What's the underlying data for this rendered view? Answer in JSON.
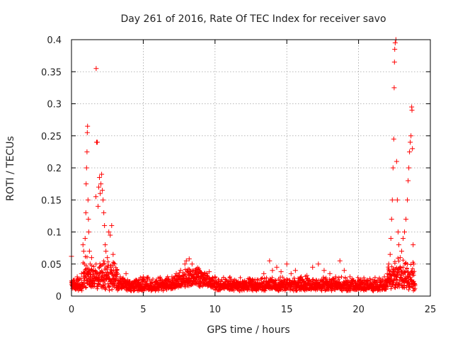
{
  "chart_data": {
    "type": "scatter",
    "title": "Day 261 of 2016, Rate Of TEC Index for receiver savo",
    "xlabel": "GPS time / hours",
    "ylabel": "ROTI / TECUs",
    "xlim": [
      0,
      25
    ],
    "ylim": [
      0,
      0.4
    ],
    "xticks": [
      0,
      5,
      10,
      15,
      20,
      25
    ],
    "xtick_labels": [
      "0",
      "5",
      "10",
      "15",
      "20",
      "25"
    ],
    "yticks": [
      0,
      0.05,
      0.1,
      0.15,
      0.2,
      0.25,
      0.3,
      0.35,
      0.4
    ],
    "ytick_labels": [
      "0",
      "0.05",
      "0.1",
      "0.15",
      "0.2",
      "0.25",
      "0.3",
      "0.35",
      "0.4"
    ],
    "grid": true,
    "marker": "+",
    "color": "#ff0000",
    "series": [
      {
        "name": "ROTI",
        "points": [
          [
            0.0,
            0.062
          ],
          [
            0.1,
            0.018
          ],
          [
            0.2,
            0.025
          ],
          [
            0.3,
            0.012
          ],
          [
            0.4,
            0.03
          ],
          [
            0.5,
            0.02
          ],
          [
            0.6,
            0.015
          ],
          [
            0.7,
            0.035
          ],
          [
            0.8,
            0.08
          ],
          [
            0.85,
            0.07
          ],
          [
            0.9,
            0.05
          ],
          [
            0.95,
            0.09
          ],
          [
            1.0,
            0.13
          ],
          [
            1.02,
            0.175
          ],
          [
            1.05,
            0.2
          ],
          [
            1.08,
            0.225
          ],
          [
            1.1,
            0.255
          ],
          [
            1.12,
            0.265
          ],
          [
            1.15,
            0.15
          ],
          [
            1.18,
            0.12
          ],
          [
            1.2,
            0.1
          ],
          [
            1.25,
            0.07
          ],
          [
            1.3,
            0.05
          ],
          [
            1.35,
            0.04
          ],
          [
            1.4,
            0.06
          ],
          [
            1.45,
            0.03
          ],
          [
            1.5,
            0.025
          ],
          [
            1.6,
            0.02
          ],
          [
            1.7,
            0.155
          ],
          [
            1.72,
            0.355
          ],
          [
            1.75,
            0.24
          ],
          [
            1.8,
            0.24
          ],
          [
            1.85,
            0.14
          ],
          [
            1.9,
            0.17
          ],
          [
            1.95,
            0.185
          ],
          [
            2.0,
            0.16
          ],
          [
            2.05,
            0.175
          ],
          [
            2.1,
            0.19
          ],
          [
            2.15,
            0.165
          ],
          [
            2.2,
            0.15
          ],
          [
            2.25,
            0.13
          ],
          [
            2.3,
            0.11
          ],
          [
            2.35,
            0.08
          ],
          [
            2.4,
            0.07
          ],
          [
            2.5,
            0.06
          ],
          [
            2.6,
            0.1
          ],
          [
            2.7,
            0.095
          ],
          [
            2.8,
            0.11
          ],
          [
            2.9,
            0.065
          ],
          [
            3.0,
            0.05
          ],
          [
            3.1,
            0.04
          ],
          [
            3.2,
            0.035
          ],
          [
            3.4,
            0.03
          ],
          [
            3.6,
            0.028
          ],
          [
            3.8,
            0.035
          ],
          [
            4.0,
            0.02
          ],
          [
            4.2,
            0.018
          ],
          [
            4.5,
            0.022
          ],
          [
            4.8,
            0.015
          ],
          [
            5.0,
            0.03
          ],
          [
            5.2,
            0.015
          ],
          [
            5.5,
            0.02
          ],
          [
            5.8,
            0.012
          ],
          [
            6.0,
            0.018
          ],
          [
            6.3,
            0.02
          ],
          [
            6.6,
            0.025
          ],
          [
            7.0,
            0.03
          ],
          [
            7.3,
            0.035
          ],
          [
            7.6,
            0.04
          ],
          [
            7.9,
            0.05
          ],
          [
            8.0,
            0.055
          ],
          [
            8.2,
            0.058
          ],
          [
            8.4,
            0.05
          ],
          [
            8.6,
            0.04
          ],
          [
            8.8,
            0.035
          ],
          [
            9.0,
            0.03
          ],
          [
            9.3,
            0.035
          ],
          [
            9.6,
            0.038
          ],
          [
            10.0,
            0.03
          ],
          [
            10.3,
            0.02
          ],
          [
            10.6,
            0.018
          ],
          [
            11.0,
            0.015
          ],
          [
            11.5,
            0.02
          ],
          [
            12.0,
            0.015
          ],
          [
            12.5,
            0.022
          ],
          [
            13.0,
            0.025
          ],
          [
            13.4,
            0.035
          ],
          [
            13.8,
            0.055
          ],
          [
            14.0,
            0.04
          ],
          [
            14.3,
            0.045
          ],
          [
            14.6,
            0.038
          ],
          [
            15.0,
            0.05
          ],
          [
            15.3,
            0.035
          ],
          [
            15.6,
            0.04
          ],
          [
            16.0,
            0.03
          ],
          [
            16.4,
            0.032
          ],
          [
            16.8,
            0.045
          ],
          [
            17.2,
            0.05
          ],
          [
            17.6,
            0.04
          ],
          [
            18.0,
            0.035
          ],
          [
            18.4,
            0.03
          ],
          [
            18.7,
            0.055
          ],
          [
            19.0,
            0.04
          ],
          [
            19.4,
            0.03
          ],
          [
            19.8,
            0.022
          ],
          [
            20.2,
            0.02
          ],
          [
            20.6,
            0.025
          ],
          [
            21.0,
            0.02
          ],
          [
            21.4,
            0.025
          ],
          [
            21.8,
            0.03
          ],
          [
            22.0,
            0.035
          ],
          [
            22.1,
            0.05
          ],
          [
            22.2,
            0.065
          ],
          [
            22.25,
            0.09
          ],
          [
            22.3,
            0.12
          ],
          [
            22.35,
            0.15
          ],
          [
            22.4,
            0.2
          ],
          [
            22.45,
            0.245
          ],
          [
            22.48,
            0.325
          ],
          [
            22.5,
            0.365
          ],
          [
            22.52,
            0.385
          ],
          [
            22.55,
            0.395
          ],
          [
            22.6,
            0.4
          ],
          [
            22.65,
            0.21
          ],
          [
            22.7,
            0.15
          ],
          [
            22.75,
            0.1
          ],
          [
            22.8,
            0.08
          ],
          [
            22.9,
            0.06
          ],
          [
            23.0,
            0.07
          ],
          [
            23.1,
            0.09
          ],
          [
            23.2,
            0.1
          ],
          [
            23.3,
            0.12
          ],
          [
            23.4,
            0.15
          ],
          [
            23.45,
            0.18
          ],
          [
            23.5,
            0.2
          ],
          [
            23.55,
            0.225
          ],
          [
            23.6,
            0.24
          ],
          [
            23.65,
            0.25
          ],
          [
            23.7,
            0.295
          ],
          [
            23.72,
            0.29
          ],
          [
            23.75,
            0.23
          ],
          [
            23.8,
            0.08
          ],
          [
            23.85,
            0.05
          ]
        ]
      }
    ]
  }
}
